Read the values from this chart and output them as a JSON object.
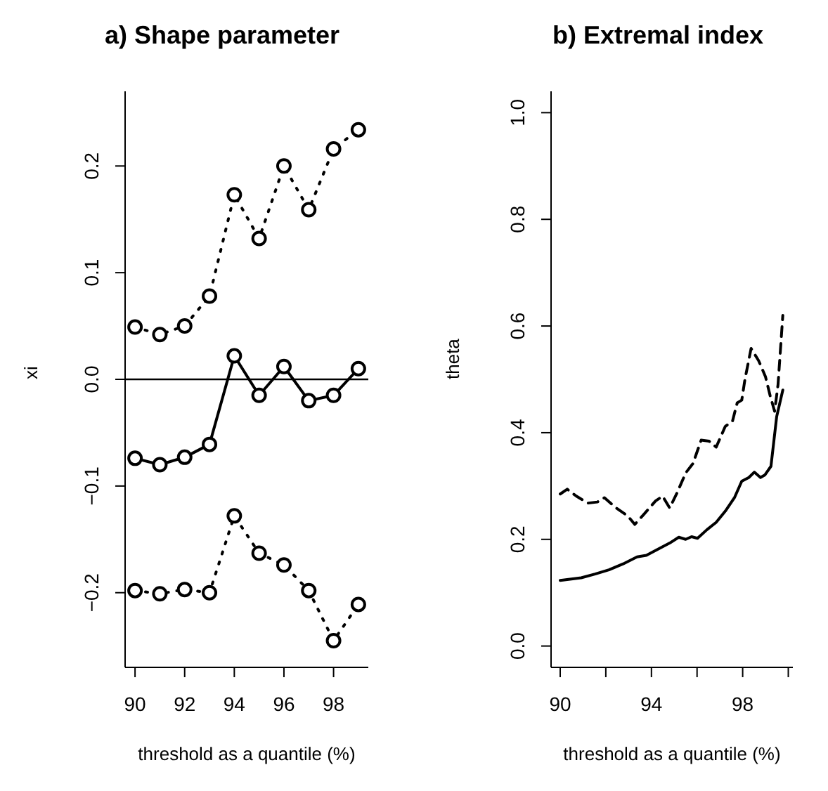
{
  "chart_data": [
    {
      "type": "line",
      "title": "a) Shape parameter",
      "xlabel": "threshold as a quantile (%)",
      "ylabel": "xi",
      "marker": "circle",
      "x": [
        90,
        91,
        92,
        93,
        94,
        95,
        96,
        97,
        98,
        99
      ],
      "xlim": [
        89.6,
        99.4
      ],
      "xticks": [
        90,
        92,
        94,
        96,
        98
      ],
      "ylim": [
        -0.27,
        0.27
      ],
      "yticks": [
        {
          "value": -0.2,
          "label": "−0.2"
        },
        {
          "value": -0.1,
          "label": "−0.1"
        },
        {
          "value": 0,
          "label": "0.0"
        },
        0.1,
        0.2
      ],
      "ref_lines": [
        {
          "axis": "y",
          "value": 0,
          "color": "#000000",
          "line_style": "solid"
        }
      ],
      "series": [
        {
          "color": "#000000",
          "line_style": "dotted",
          "values": [
            0.049,
            0.042,
            0.05,
            0.078,
            0.173,
            0.132,
            0.2,
            0.159,
            0.216,
            0.234
          ]
        },
        {
          "color": "#000000",
          "line_style": "solid",
          "values": [
            -0.074,
            -0.08,
            -0.073,
            -0.061,
            0.022,
            -0.015,
            0.012,
            -0.02,
            -0.015,
            0.01
          ]
        },
        {
          "color": "#000000",
          "line_style": "dotted",
          "values": [
            -0.198,
            -0.201,
            -0.197,
            -0.2,
            -0.128,
            -0.163,
            -0.174,
            -0.198,
            -0.245,
            -0.211
          ]
        }
      ]
    },
    {
      "type": "line",
      "title": "b) Extremal index",
      "xlabel": "threshold as a quantile (%)",
      "ylabel": "theta",
      "marker": "none",
      "xlim": [
        89.6,
        100.2
      ],
      "xticks": [
        90,
        {
          "value": 92,
          "label": null
        },
        94,
        {
          "value": 96,
          "label": null
        },
        98,
        {
          "value": 100,
          "label": null
        }
      ],
      "ylim": [
        -0.04,
        1.04
      ],
      "yticks": [
        {
          "value": 0,
          "label": "0.0"
        },
        0.2,
        0.4,
        0.6,
        0.8,
        {
          "value": 1,
          "label": "1.0"
        }
      ],
      "series": [
        {
          "color": "#000000",
          "line_style": "solid",
          "x": [
            90,
            90.92,
            91.53,
            92.14,
            92.76,
            93.37,
            93.78,
            94.39,
            94.8,
            95.2,
            95.5,
            95.76,
            96.02,
            96.43,
            96.84,
            97.24,
            97.65,
            97.96,
            98.27,
            98.51,
            98.78,
            98.98,
            99.24,
            99.49,
            99.76
          ],
          "values": [
            0.123,
            0.128,
            0.135,
            0.143,
            0.154,
            0.167,
            0.17,
            0.184,
            0.193,
            0.204,
            0.2,
            0.205,
            0.202,
            0.218,
            0.232,
            0.253,
            0.279,
            0.309,
            0.316,
            0.326,
            0.316,
            0.321,
            0.337,
            0.43,
            0.48
          ]
        },
        {
          "color": "#000000",
          "line_style": "dashed",
          "x": [
            90,
            90.31,
            90.71,
            91.22,
            91.63,
            91.94,
            92.45,
            92.96,
            93.27,
            93.67,
            94.18,
            94.49,
            94.8,
            95.1,
            95.51,
            95.82,
            96.18,
            96.53,
            96.84,
            97.24,
            97.55,
            97.76,
            97.96,
            98.1,
            98.37,
            98.7,
            99.0,
            99.2,
            99.4,
            99.55,
            99.76
          ],
          "values": [
            0.285,
            0.294,
            0.281,
            0.268,
            0.27,
            0.278,
            0.259,
            0.244,
            0.228,
            0.247,
            0.272,
            0.281,
            0.259,
            0.285,
            0.325,
            0.342,
            0.386,
            0.384,
            0.373,
            0.412,
            0.421,
            0.456,
            0.461,
            0.5,
            0.558,
            0.535,
            0.505,
            0.47,
            0.44,
            0.49,
            0.62
          ]
        }
      ]
    }
  ]
}
